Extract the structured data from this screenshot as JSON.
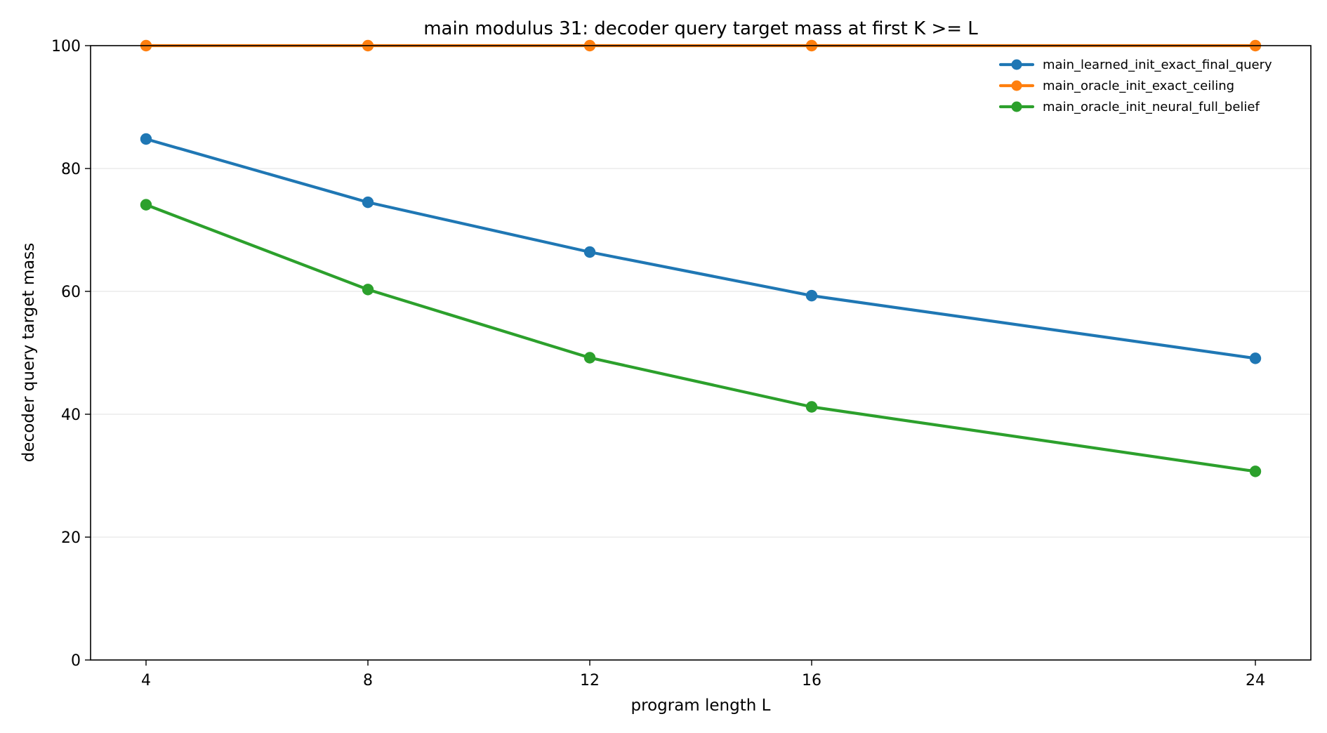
{
  "chart_data": {
    "type": "line",
    "title": "main modulus 31: decoder query target mass at first K >= L",
    "xlabel": "program length L",
    "ylabel": "decoder query target mass",
    "x": [
      4,
      8,
      12,
      16,
      24
    ],
    "x_ticks": [
      "4",
      "8",
      "12",
      "16",
      "24"
    ],
    "y_ticks": [
      "0",
      "20",
      "40",
      "60",
      "80",
      "100"
    ],
    "xlim": [
      3,
      25
    ],
    "ylim": [
      0,
      100
    ],
    "grid": "horizontal",
    "legend_position": "top-right",
    "series": [
      {
        "name": "main_learned_init_exact_final_query",
        "color": "#1f77b4",
        "values": [
          84.8,
          74.5,
          66.4,
          59.3,
          49.1
        ]
      },
      {
        "name": "main_oracle_init_exact_ceiling",
        "color": "#ff7f0e",
        "values": [
          100.0,
          100.0,
          100.0,
          100.0,
          100.0
        ]
      },
      {
        "name": "main_oracle_init_neural_full_belief",
        "color": "#2ca02c",
        "values": [
          74.1,
          60.3,
          49.2,
          41.2,
          30.7
        ]
      }
    ]
  }
}
